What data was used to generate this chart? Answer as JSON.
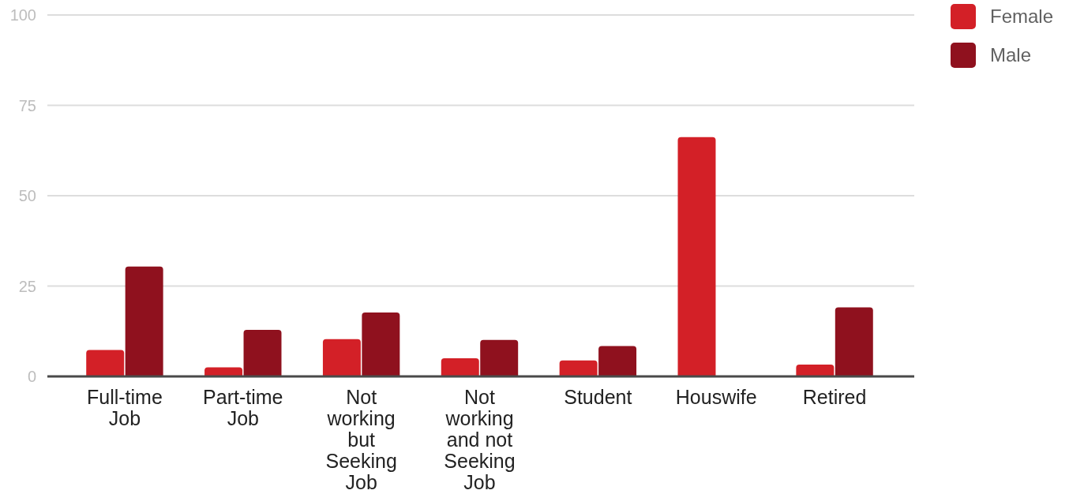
{
  "chart_data": {
    "type": "bar",
    "categories": [
      "Full-time Job",
      "Part-time Job",
      "Not working but Seeking Job",
      "Not working and not Seeking Job",
      "Student",
      "Houswife",
      "Retired"
    ],
    "series": [
      {
        "name": "Female",
        "color": "#d32027",
        "values": [
          7.3,
          2.5,
          10.3,
          5.0,
          4.4,
          66.2,
          3.3
        ]
      },
      {
        "name": "Male",
        "color": "#8f111e",
        "values": [
          30.4,
          12.9,
          17.7,
          10.1,
          8.4,
          0,
          19.1
        ]
      }
    ],
    "ylim": [
      0,
      100
    ],
    "yticks": [
      0,
      25,
      50,
      75,
      100
    ],
    "grid": "y",
    "legend": "top right"
  }
}
